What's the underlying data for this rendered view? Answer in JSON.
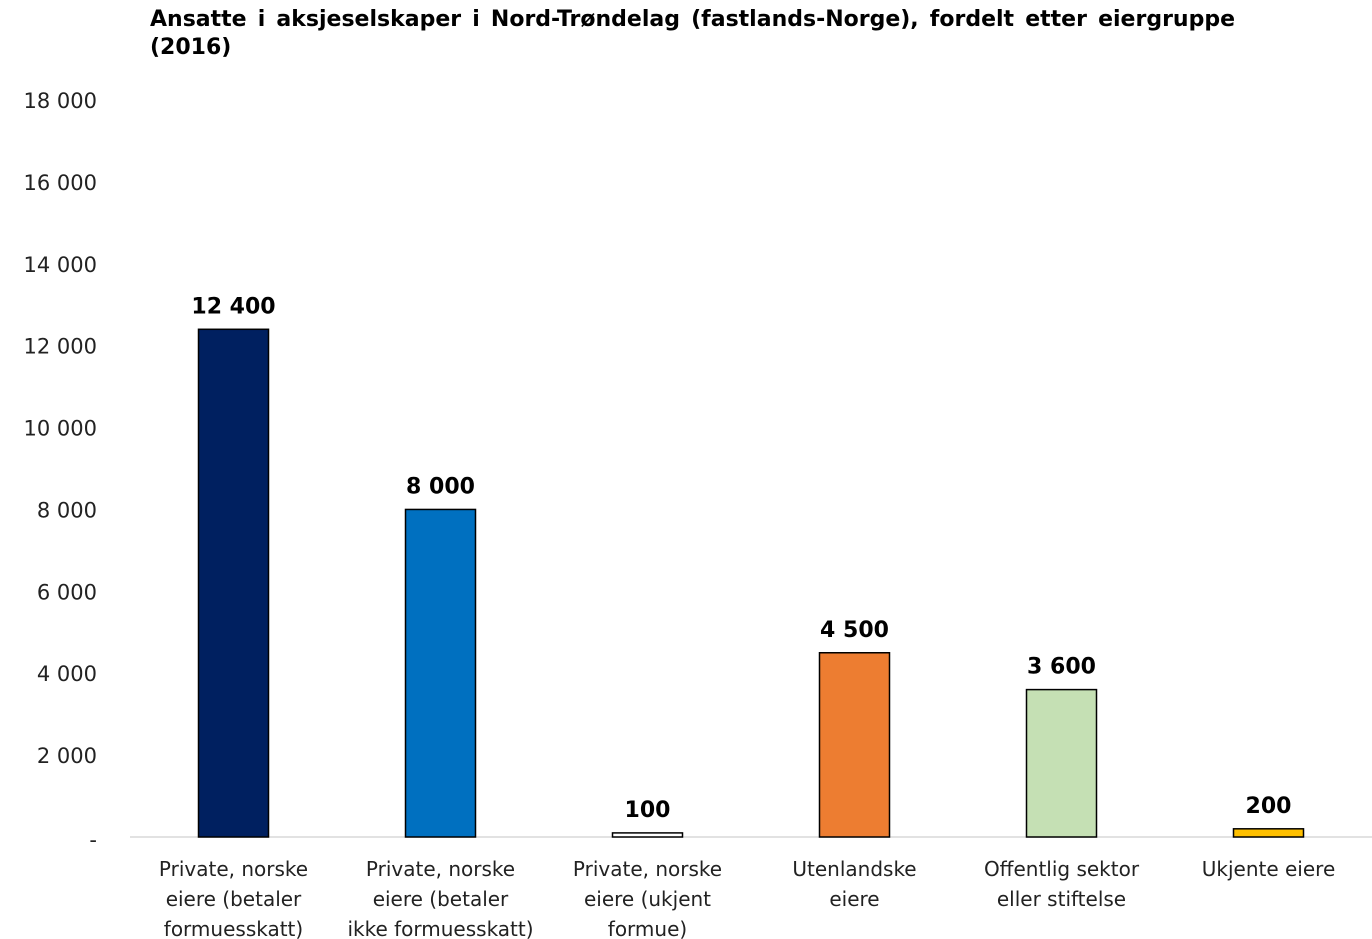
{
  "chart_data": {
    "type": "bar",
    "title": "Ansatte i aksjeselskaper i Nord-Trøndelag (fastlands-Norge), fordelt etter eiergruppe (2016)",
    "categories": [
      [
        "Private, norske",
        "eiere (betaler",
        "formuesskatt)"
      ],
      [
        "Private, norske",
        "eiere (betaler",
        "ikke formuesskatt)"
      ],
      [
        "Private, norske",
        "eiere (ukjent",
        "formue)"
      ],
      [
        "Utenlandske",
        "eiere"
      ],
      [
        "Offentlig sektor",
        "eller stiftelse"
      ],
      [
        "Ukjente eiere"
      ]
    ],
    "values": [
      12400,
      8000,
      100,
      4500,
      3600,
      200
    ],
    "data_labels": [
      "12 400",
      "8 000",
      "100",
      "4 500",
      "3 600",
      "200"
    ],
    "colors": [
      "#002060",
      "#0070c0",
      "#ffffff",
      "#ed7d31",
      "#c5e0b4",
      "#ffc000"
    ],
    "ylim": [
      0,
      18000
    ],
    "yticks": [
      0,
      2000,
      4000,
      6000,
      8000,
      10000,
      12000,
      14000,
      16000,
      18000
    ],
    "ytick_labels": [
      "-",
      "2 000",
      "4 000",
      "6 000",
      "8 000",
      "10 000",
      "12 000",
      "14 000",
      "16 000",
      "18 000"
    ],
    "xlabel": "",
    "ylabel": "",
    "grid": false,
    "legend": "none"
  }
}
